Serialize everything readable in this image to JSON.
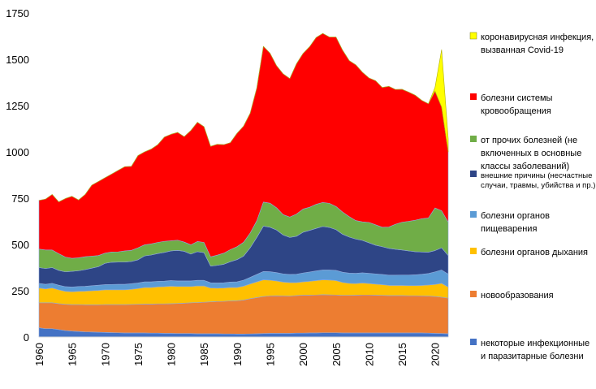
{
  "chart_data": {
    "type": "area",
    "stacked": true,
    "title": "",
    "xlabel": "",
    "ylabel": "",
    "xlim": [
      1960,
      2022
    ],
    "ylim": [
      0,
      1750
    ],
    "y_ticks": [
      0,
      250,
      500,
      750,
      1000,
      1250,
      1500,
      1750
    ],
    "x_ticks": [
      1960,
      1965,
      1970,
      1975,
      1980,
      1985,
      1990,
      1995,
      2000,
      2005,
      2010,
      2015,
      2020
    ],
    "grid": false,
    "legend_position": "right",
    "x": [
      1960,
      1961,
      1962,
      1963,
      1964,
      1965,
      1966,
      1967,
      1968,
      1969,
      1970,
      1971,
      1972,
      1973,
      1974,
      1975,
      1976,
      1977,
      1978,
      1979,
      1980,
      1981,
      1982,
      1983,
      1984,
      1985,
      1986,
      1987,
      1988,
      1989,
      1990,
      1991,
      1992,
      1993,
      1994,
      1995,
      1996,
      1997,
      1998,
      1999,
      2000,
      2001,
      2002,
      2003,
      2004,
      2005,
      2006,
      2007,
      2008,
      2009,
      2010,
      2011,
      2012,
      2013,
      2014,
      2015,
      2016,
      2017,
      2018,
      2019,
      2020,
      2021,
      2022
    ],
    "series": [
      {
        "name": "некоторые инфекционные и паразитарные болезни",
        "color": "#4472C4",
        "values": [
          50,
          45,
          45,
          40,
          35,
          32,
          30,
          28,
          27,
          26,
          25,
          24,
          23,
          22,
          22,
          22,
          22,
          21,
          21,
          20,
          20,
          19,
          19,
          19,
          18,
          18,
          18,
          18,
          17,
          17,
          16,
          16,
          17,
          18,
          19,
          20,
          20,
          20,
          20,
          21,
          21,
          22,
          22,
          23,
          23,
          23,
          22,
          22,
          22,
          22,
          22,
          22,
          22,
          22,
          22,
          22,
          22,
          22,
          22,
          21,
          20,
          19,
          18
        ]
      },
      {
        "name": "новообразования",
        "color": "#ED7D31",
        "values": [
          135,
          140,
          140,
          140,
          142,
          143,
          145,
          146,
          147,
          148,
          150,
          151,
          152,
          153,
          154,
          155,
          156,
          157,
          158,
          159,
          160,
          162,
          164,
          166,
          168,
          170,
          172,
          174,
          176,
          178,
          180,
          184,
          190,
          195,
          200,
          202,
          203,
          202,
          201,
          203,
          205,
          204,
          205,
          206,
          205,
          204,
          203,
          203,
          204,
          205,
          205,
          204,
          203,
          202,
          202,
          202,
          201,
          201,
          200,
          200,
          199,
          196,
          192
        ]
      },
      {
        "name": "болезни органов дыхания",
        "color": "#FFC000",
        "values": [
          80,
          75,
          80,
          75,
          70,
          70,
          72,
          74,
          76,
          78,
          80,
          80,
          80,
          80,
          82,
          85,
          90,
          90,
          92,
          93,
          95,
          92,
          90,
          88,
          90,
          88,
          75,
          72,
          72,
          73,
          72,
          75,
          80,
          85,
          90,
          85,
          80,
          75,
          73,
          70,
          72,
          75,
          78,
          80,
          80,
          78,
          70,
          65,
          63,
          65,
          62,
          60,
          58,
          55,
          55,
          55,
          55,
          55,
          57,
          60,
          65,
          75,
          60
        ]
      },
      {
        "name": "болезни органов пищеварения",
        "color": "#5B9BD5",
        "values": [
          25,
          25,
          25,
          25,
          25,
          25,
          26,
          26,
          27,
          28,
          28,
          29,
          30,
          30,
          30,
          30,
          30,
          30,
          30,
          30,
          30,
          30,
          30,
          30,
          30,
          30,
          28,
          28,
          28,
          29,
          30,
          32,
          35,
          40,
          45,
          46,
          45,
          44,
          44,
          45,
          48,
          50,
          52,
          53,
          54,
          55,
          55,
          55,
          55,
          55,
          55,
          55,
          55,
          55,
          55,
          56,
          57,
          58,
          60,
          62,
          68,
          72,
          70
        ]
      },
      {
        "name": "внешние причины (несчастные случаи, травмы, убийства и пр.)",
        "color": "#2E4586",
        "values": [
          85,
          85,
          85,
          80,
          80,
          85,
          85,
          90,
          95,
          100,
          115,
          120,
          120,
          120,
          120,
          125,
          140,
          145,
          150,
          155,
          160,
          165,
          160,
          145,
          155,
          150,
          90,
          95,
          100,
          110,
          120,
          130,
          160,
          200,
          245,
          240,
          230,
          210,
          200,
          205,
          220,
          225,
          230,
          235,
          230,
          220,
          205,
          195,
          185,
          175,
          165,
          155,
          150,
          145,
          140,
          135,
          130,
          125,
          120,
          115,
          115,
          120,
          100
        ]
      },
      {
        "name": "от прочих болезней (не включенных в основные классы заболеваний)",
        "color": "#70AD47",
        "values": [
          100,
          100,
          95,
          90,
          80,
          70,
          70,
          70,
          65,
          60,
          55,
          55,
          55,
          60,
          60,
          65,
          60,
          60,
          60,
          60,
          55,
          55,
          50,
          50,
          55,
          55,
          50,
          55,
          60,
          65,
          70,
          75,
          80,
          90,
          130,
          130,
          120,
          110,
          110,
          120,
          125,
          125,
          130,
          130,
          130,
          125,
          120,
          110,
          100,
          100,
          110,
          110,
          105,
          115,
          135,
          150,
          160,
          170,
          180,
          185,
          230,
          200,
          180
        ]
      },
      {
        "name": "болезни системы кровообращения",
        "color": "#FF0000",
        "values": [
          263,
          275,
          300,
          280,
          316,
          335,
          312,
          336,
          383,
          400,
          407,
          421,
          440,
          455,
          454,
          498,
          502,
          512,
          528,
          563,
          575,
          582,
          569,
          617,
          644,
          625,
          597,
          599,
          586,
          578,
          612,
          627,
          647,
          717,
          841,
          810,
          767,
          760,
          748,
          811,
          840,
          867,
          901,
          913,
          898,
          915,
          874,
          843,
          841,
          808,
          780,
          778,
          755,
          760,
          728,
          718,
          698,
          675,
          639,
          617,
          631,
          560,
          380
        ]
      },
      {
        "name": "коронавирусная инфекция, вызванная Covid-19",
        "color": "#FFFF00",
        "values": [
          0,
          0,
          0,
          0,
          0,
          0,
          0,
          0,
          0,
          0,
          0,
          0,
          0,
          0,
          0,
          0,
          0,
          0,
          0,
          0,
          0,
          0,
          0,
          0,
          0,
          0,
          0,
          0,
          0,
          0,
          0,
          0,
          0,
          0,
          0,
          0,
          0,
          0,
          0,
          0,
          0,
          0,
          0,
          0,
          0,
          0,
          0,
          0,
          0,
          0,
          0,
          0,
          0,
          0,
          0,
          0,
          0,
          0,
          0,
          0,
          20,
          310,
          70
        ]
      }
    ]
  }
}
